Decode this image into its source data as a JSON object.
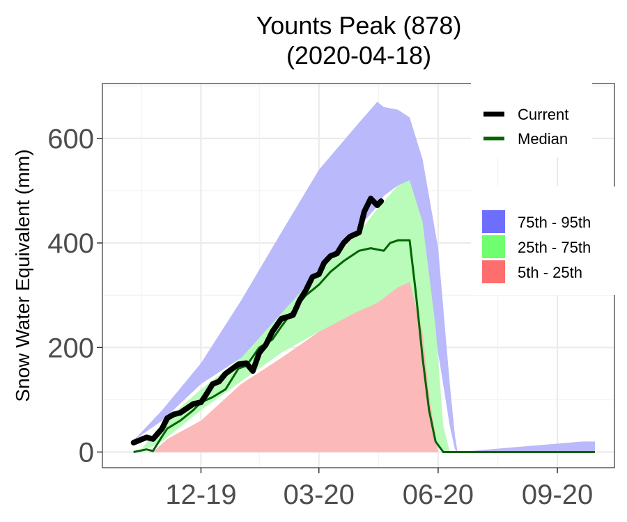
{
  "chart_data": {
    "type": "area",
    "title": "Younts Peak (878)",
    "subtitle": "(2020-04-18)",
    "xlabel": "",
    "ylabel": "Snow Water Equivalent (mm)",
    "x_range": [
      "2019-10-01",
      "2020-09-30"
    ],
    "ylim": [
      -30,
      705
    ],
    "yticks": [
      0,
      200,
      400,
      600
    ],
    "xticks": [
      {
        "date": "2019-12-01",
        "label": "12-19"
      },
      {
        "date": "2020-03-01",
        "label": "03-20"
      },
      {
        "date": "2020-06-01",
        "label": "06-20"
      },
      {
        "date": "2020-09-01",
        "label": "09-20"
      }
    ],
    "grid": true,
    "legend_position": "right",
    "colors": {
      "band_75_95": "#b9b9fb",
      "band_25_75": "#b9fbb9",
      "band_5_25": "#fbb9b9",
      "current": "#000000",
      "median": "#006400",
      "legend_75_95": "#6e6efe",
      "legend_25_75": "#6efe6e",
      "legend_5_25": "#fe6e6e"
    },
    "legend": {
      "lines": [
        {
          "label": "Current",
          "color": "#000000"
        },
        {
          "label": "Median",
          "color": "#006400"
        }
      ],
      "bands": [
        {
          "label": "75th - 95th",
          "color": "#6e6efe"
        },
        {
          "label": "25th - 75th",
          "color": "#6efe6e"
        },
        {
          "label": "5th - 25th",
          "color": "#fe6e6e"
        }
      ]
    },
    "series": [
      {
        "name": "Current",
        "x": [
          "2019-10-10",
          "2019-10-20",
          "2019-10-25",
          "2019-11-01",
          "2019-11-05",
          "2019-11-10",
          "2019-11-15",
          "2019-11-25",
          "2019-12-01",
          "2019-12-05",
          "2019-12-10",
          "2019-12-15",
          "2019-12-20",
          "2019-12-30",
          "2020-01-05",
          "2020-01-10",
          "2020-01-15",
          "2020-01-20",
          "2020-01-25",
          "2020-02-01",
          "2020-02-10",
          "2020-02-15",
          "2020-02-20",
          "2020-02-25",
          "2020-03-01",
          "2020-03-05",
          "2020-03-10",
          "2020-03-15",
          "2020-03-20",
          "2020-03-25",
          "2020-04-01",
          "2020-04-05",
          "2020-04-10",
          "2020-04-15",
          "2020-04-18"
        ],
        "values": [
          18,
          28,
          25,
          45,
          65,
          72,
          75,
          92,
          95,
          110,
          130,
          135,
          150,
          168,
          170,
          155,
          190,
          205,
          230,
          255,
          262,
          290,
          310,
          335,
          340,
          362,
          375,
          380,
          400,
          412,
          420,
          460,
          485,
          472,
          480
        ]
      },
      {
        "name": "Median",
        "x": [
          "2019-10-10",
          "2019-10-20",
          "2019-10-25",
          "2019-11-01",
          "2019-11-05",
          "2019-11-15",
          "2019-11-25",
          "2019-12-01",
          "2019-12-10",
          "2019-12-20",
          "2019-12-30",
          "2020-01-05",
          "2020-01-15",
          "2020-01-25",
          "2020-02-01",
          "2020-02-10",
          "2020-02-20",
          "2020-03-01",
          "2020-03-10",
          "2020-03-20",
          "2020-04-01",
          "2020-04-10",
          "2020-04-20",
          "2020-04-25",
          "2020-05-01",
          "2020-05-10",
          "2020-05-15",
          "2020-05-20",
          "2020-05-25",
          "2020-05-30",
          "2020-06-05",
          "2020-06-10",
          "2020-09-30"
        ],
        "values": [
          0,
          5,
          2,
          30,
          45,
          60,
          80,
          95,
          105,
          120,
          160,
          165,
          200,
          215,
          240,
          270,
          300,
          320,
          345,
          365,
          385,
          390,
          385,
          400,
          405,
          405,
          300,
          180,
          80,
          20,
          0,
          0,
          0
        ]
      },
      {
        "name": "75th - 95th",
        "x": [
          "2019-10-10",
          "2019-11-01",
          "2019-12-01",
          "2020-01-01",
          "2020-02-01",
          "2020-03-01",
          "2020-04-01",
          "2020-04-15",
          "2020-04-20",
          "2020-05-01",
          "2020-05-10",
          "2020-05-20",
          "2020-06-01",
          "2020-06-10",
          "2020-06-14",
          "2020-06-16",
          "2020-09-20",
          "2020-09-30"
        ],
        "low": [
          22,
          60,
          130,
          180,
          260,
          350,
          430,
          470,
          490,
          510,
          490,
          390,
          190,
          50,
          5,
          0,
          0,
          0
        ],
        "high": [
          22,
          80,
          170,
          290,
          420,
          540,
          630,
          670,
          660,
          655,
          640,
          560,
          390,
          130,
          30,
          0,
          20,
          20
        ]
      },
      {
        "name": "25th - 75th",
        "x": [
          "2019-10-15",
          "2019-11-01",
          "2019-12-01",
          "2020-01-01",
          "2020-02-01",
          "2020-03-01",
          "2020-04-01",
          "2020-04-15",
          "2020-05-01",
          "2020-05-10",
          "2020-05-20",
          "2020-05-30",
          "2020-06-05",
          "2020-06-10"
        ],
        "low": [
          0,
          20,
          80,
          135,
          190,
          230,
          260,
          270,
          280,
          260,
          160,
          20,
          0,
          0
        ],
        "high": [
          2,
          55,
          120,
          180,
          265,
          345,
          420,
          465,
          510,
          520,
          440,
          240,
          50,
          0
        ]
      },
      {
        "name": "5th - 25th",
        "x": [
          "2019-10-25",
          "2019-11-05",
          "2019-12-01",
          "2020-01-01",
          "2020-02-01",
          "2020-03-01",
          "2020-04-01",
          "2020-04-15",
          "2020-05-01",
          "2020-05-10",
          "2020-05-20",
          "2020-05-25",
          "2020-06-01"
        ],
        "low": [
          0,
          0,
          0,
          0,
          0,
          0,
          0,
          0,
          0,
          0,
          0,
          0,
          0
        ],
        "high": [
          0,
          25,
          60,
          130,
          180,
          230,
          270,
          285,
          315,
          325,
          230,
          110,
          0
        ]
      }
    ]
  }
}
